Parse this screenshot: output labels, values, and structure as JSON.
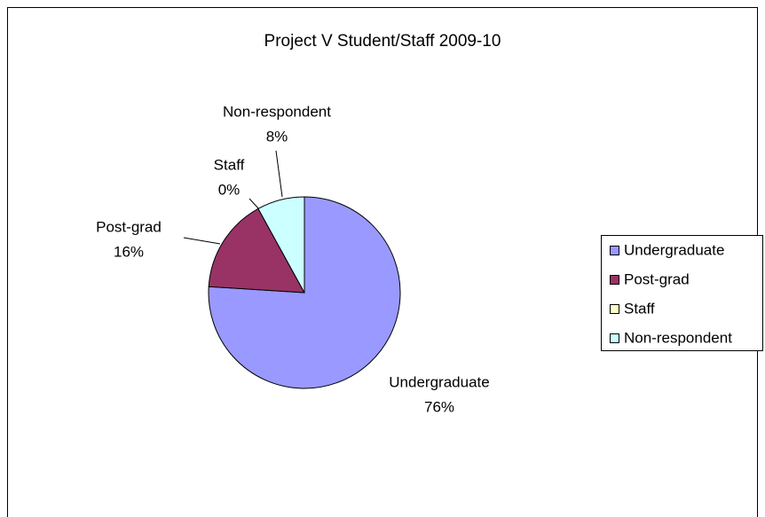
{
  "chart_data": {
    "type": "pie",
    "title": "Project V Student/Staff 2009-10",
    "categories": [
      "Undergraduate",
      "Post-grad",
      "Staff",
      "Non-respondent"
    ],
    "values": [
      76,
      16,
      0,
      8
    ],
    "value_labels": [
      "76%",
      "16%",
      "0%",
      "8%"
    ],
    "colors": [
      "#9999ff",
      "#993366",
      "#ffffcc",
      "#ccffff"
    ],
    "legend": "right"
  }
}
